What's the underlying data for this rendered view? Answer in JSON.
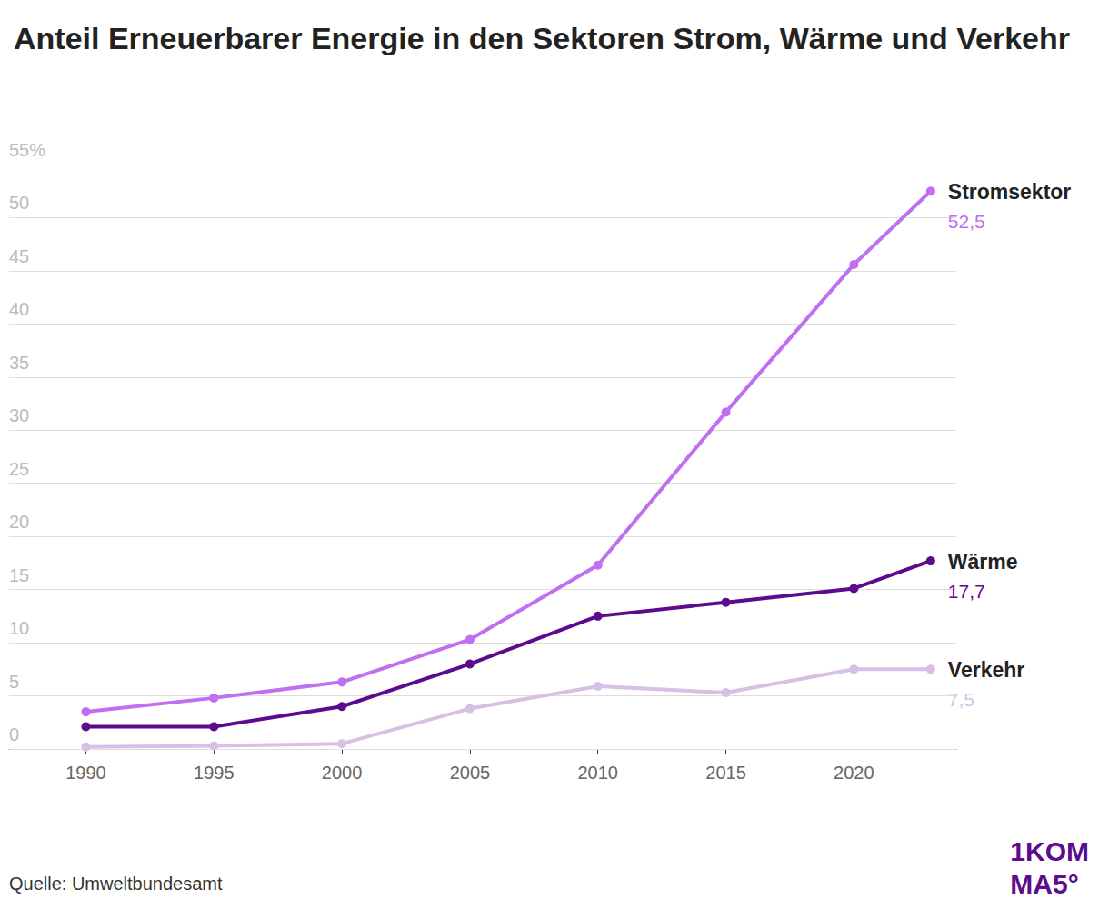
{
  "chart_data": {
    "type": "line",
    "title": "Anteil Erneuerbarer Energie in den Sektoren Strom, Wärme und Verkehr",
    "source": "Quelle: Umweltbundesamt",
    "logo": [
      "1KOM",
      "MA5°"
    ],
    "x": [
      1990,
      1995,
      2000,
      2005,
      2010,
      2015,
      2020,
      2023
    ],
    "xlim": [
      1987,
      2024
    ],
    "xticks": [
      1990,
      1995,
      2000,
      2005,
      2010,
      2015,
      2020
    ],
    "ylim": [
      0,
      55
    ],
    "yticks": [
      0,
      5,
      10,
      15,
      20,
      25,
      30,
      35,
      40,
      45,
      50,
      {
        "value": 55,
        "label": "55%"
      }
    ],
    "grid": true,
    "series": [
      {
        "name": "Stromsektor",
        "color": "#bf6ff0",
        "marker": "circle",
        "values": [
          3.5,
          4.8,
          6.3,
          10.3,
          17.3,
          31.7,
          45.6,
          52.5
        ],
        "value_labels": [
          null,
          null,
          null,
          null,
          null,
          null,
          null,
          "52,5"
        ]
      },
      {
        "name": "Wärme",
        "color": "#5b0b8c",
        "marker": "circle",
        "values": [
          2.1,
          2.1,
          4.0,
          8.0,
          12.5,
          13.8,
          15.1,
          17.7
        ],
        "value_labels": [
          null,
          null,
          null,
          null,
          null,
          null,
          null,
          "17,7"
        ]
      },
      {
        "name": "Verkehr",
        "color": "#d8bfe6",
        "marker": "circle",
        "values": [
          0.2,
          0.3,
          0.5,
          3.8,
          5.9,
          5.3,
          7.5,
          7.5
        ],
        "value_labels": [
          null,
          null,
          null,
          null,
          null,
          null,
          null,
          "7,5"
        ]
      }
    ]
  }
}
